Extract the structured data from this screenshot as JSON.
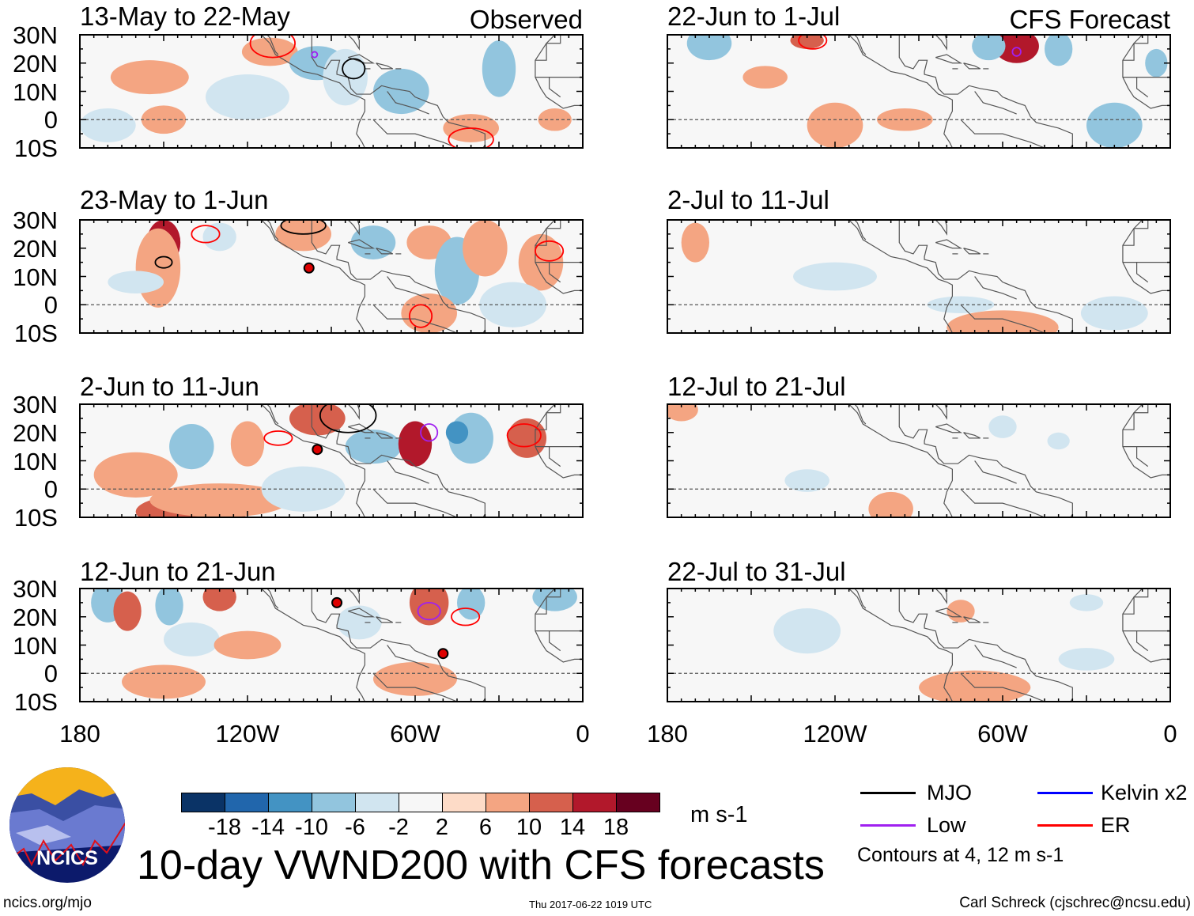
{
  "panels": {
    "left": [
      {
        "title": "13-May to 22-May",
        "tag": "Observed"
      },
      {
        "title": "23-May to 1-Jun",
        "tag": ""
      },
      {
        "title": "2-Jun to 11-Jun",
        "tag": ""
      },
      {
        "title": "12-Jun to 21-Jun",
        "tag": ""
      }
    ],
    "right": [
      {
        "title": "22-Jun to 1-Jul",
        "tag": "CFS Forecast"
      },
      {
        "title": "2-Jul to 11-Jul",
        "tag": ""
      },
      {
        "title": "12-Jul to 21-Jul",
        "tag": ""
      },
      {
        "title": "22-Jul to 31-Jul",
        "tag": ""
      }
    ]
  },
  "lat_labels": [
    "30N",
    "20N",
    "10N",
    "0",
    "10S"
  ],
  "lon_labels": [
    "180",
    "120W",
    "60W",
    "0"
  ],
  "colorbar": {
    "colors": [
      "#0a3366",
      "#2166ac",
      "#4393c3",
      "#92c5de",
      "#d1e5f0",
      "#f7f7f7",
      "#fddbc7",
      "#f4a582",
      "#d6604d",
      "#b2182b",
      "#67001f"
    ],
    "ticks": [
      "-18",
      "-14",
      "-10",
      "-6",
      "-2",
      "2",
      "6",
      "10",
      "14",
      "18"
    ],
    "units": "m s-1"
  },
  "legend": {
    "items": [
      {
        "label": "MJO",
        "color": "#000000"
      },
      {
        "label": "Kelvin x2",
        "color": "#0000ff"
      },
      {
        "label": "Low",
        "color": "#a020f0"
      },
      {
        "label": "ER",
        "color": "#ff0000"
      }
    ],
    "contours_note": "Contours at 4, 12 m s-1"
  },
  "logo_text": "NCICS",
  "main_title": "10-day VWND200 with CFS forecasts",
  "footer": {
    "url": "ncics.org/mjo",
    "timestamp": "Thu 2017-06-22 1019 UTC",
    "author": "Carl Schreck (cjschrec@ncsu.edu)"
  }
}
